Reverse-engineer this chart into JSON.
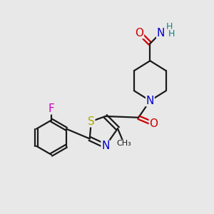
{
  "bg_color": "#e8e8e8",
  "line_color": "#1a1a1a",
  "bond_width": 1.6,
  "atom_colors": {
    "N": "#0000cc",
    "O": "#cc0000",
    "S": "#aaaa00",
    "F": "#cc00cc",
    "H": "#008888",
    "C": "#1a1a1a"
  },
  "font_size": 10,
  "fig_size": [
    3.0,
    3.0
  ],
  "dpi": 100
}
